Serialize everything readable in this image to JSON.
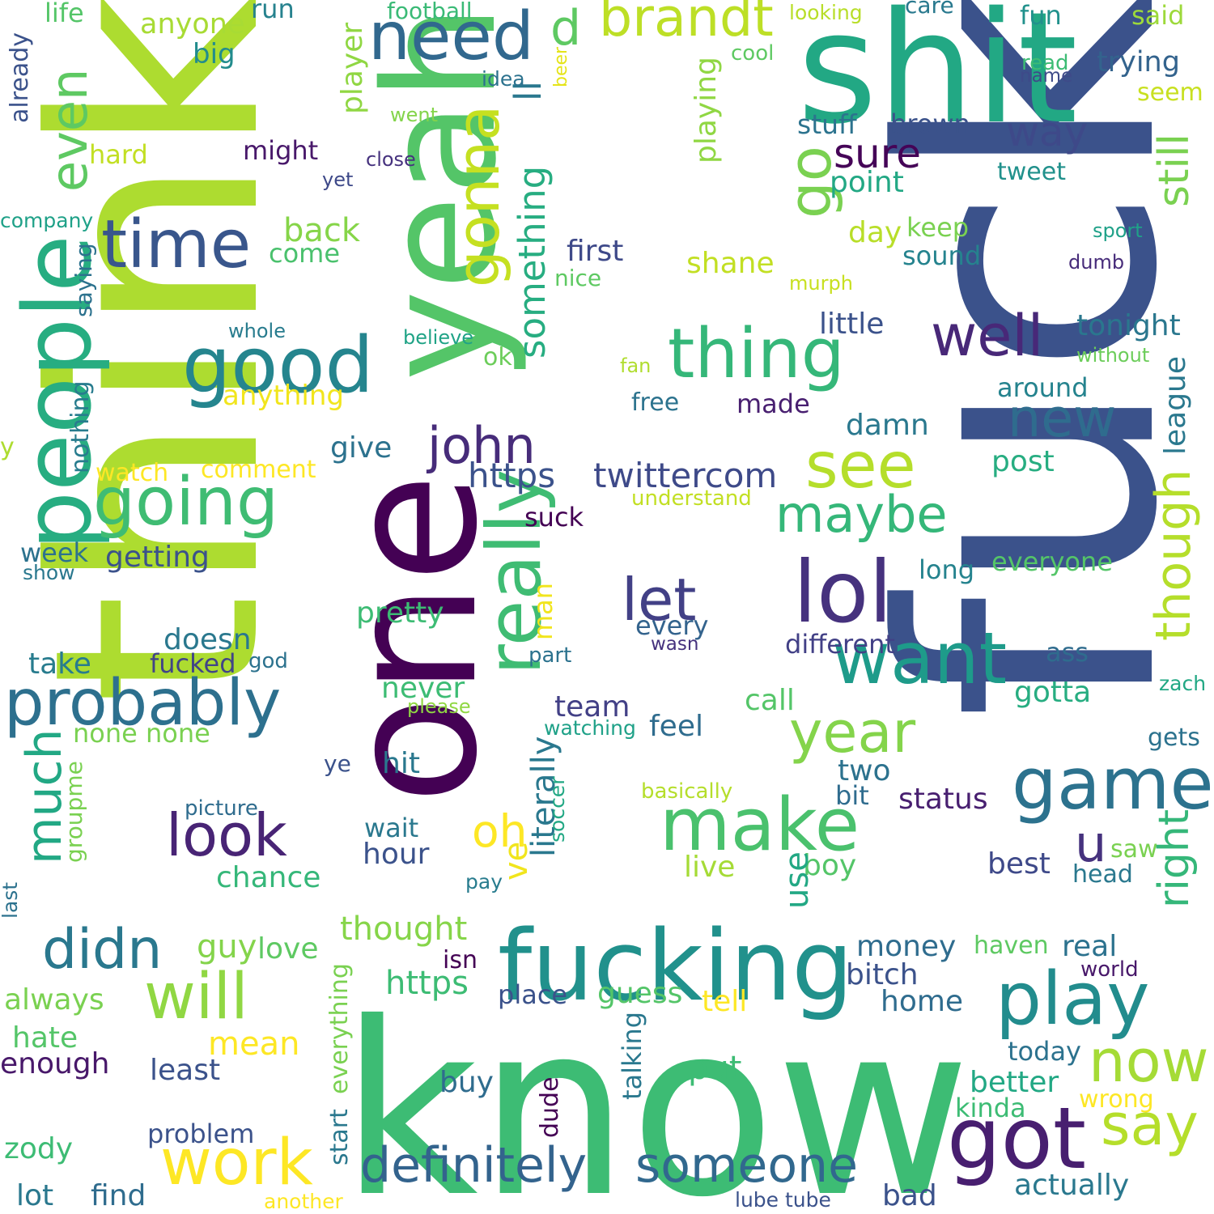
{
  "words": [
    {
      "text": "fuck",
      "color": "#3b528b",
      "rot": -90
    },
    {
      "text": "think",
      "color": "#addc30",
      "rot": -90
    },
    {
      "text": "one",
      "color": "#440154",
      "rot": -90
    },
    {
      "text": "know",
      "color": "#3dbc74",
      "rot": 0
    },
    {
      "text": "shit",
      "color": "#22a884",
      "rot": 0
    },
    {
      "text": "yeah",
      "color": "#54c568",
      "rot": -90
    },
    {
      "text": "fucking",
      "color": "#21918c",
      "rot": 0
    },
    {
      "text": "people",
      "color": "#27ad81",
      "rot": -90
    },
    {
      "text": "time",
      "color": "#39568c",
      "rot": 0
    },
    {
      "text": "good",
      "color": "#25858e",
      "rot": 0
    },
    {
      "text": "going",
      "color": "#3fbc73",
      "rot": 0
    },
    {
      "text": "probably",
      "color": "#2d708e",
      "rot": 0
    },
    {
      "text": "need",
      "color": "#31688e",
      "rot": 0
    },
    {
      "text": "even",
      "color": "#5ec962",
      "rot": -90
    },
    {
      "text": "brandt",
      "color": "#bddf26",
      "rot": 0
    },
    {
      "text": "gonna",
      "color": "#c5e021",
      "rot": -90
    },
    {
      "text": "go",
      "color": "#7ad151",
      "rot": -90
    },
    {
      "text": "really",
      "color": "#3fbc73",
      "rot": -90
    },
    {
      "text": "thing",
      "color": "#35b779",
      "rot": 0
    },
    {
      "text": "well",
      "color": "#482878",
      "rot": 0
    },
    {
      "text": "lol",
      "color": "#46327e",
      "rot": 0
    },
    {
      "text": "want",
      "color": "#1e9b8a",
      "rot": 0
    },
    {
      "text": "see",
      "color": "#b5de2b",
      "rot": 0
    },
    {
      "text": "maybe",
      "color": "#35b779",
      "rot": 0
    },
    {
      "text": "john",
      "color": "#472c7a",
      "rot": 0
    },
    {
      "text": "make",
      "color": "#4ac16d",
      "rot": 0
    },
    {
      "text": "year",
      "color": "#84d44b",
      "rot": 0
    },
    {
      "text": "game",
      "color": "#2c728e",
      "rot": 0
    },
    {
      "text": "play",
      "color": "#228c8d",
      "rot": 0
    },
    {
      "text": "got",
      "color": "#481f70",
      "rot": 0
    },
    {
      "text": "now",
      "color": "#a5db36",
      "rot": 0
    },
    {
      "text": "say",
      "color": "#b5de2b",
      "rot": 0
    },
    {
      "text": "will",
      "color": "#90d743",
      "rot": 0
    },
    {
      "text": "work",
      "color": "#fde725",
      "rot": 0
    },
    {
      "text": "didn",
      "color": "#2a788e",
      "rot": 0
    },
    {
      "text": "look",
      "color": "#482475",
      "rot": 0
    },
    {
      "text": "much",
      "color": "#22a884",
      "rot": -90
    },
    {
      "text": "definitely",
      "color": "#33638d",
      "rot": 0
    },
    {
      "text": "someone",
      "color": "#31688e",
      "rot": 0
    },
    {
      "text": "still",
      "color": "#7ad151",
      "rot": -90
    },
    {
      "text": "though",
      "color": "#b5de2b",
      "rot": -90
    },
    {
      "text": "right",
      "color": "#35b779",
      "rot": -90
    },
    {
      "text": "something",
      "color": "#27ad81",
      "rot": -90
    },
    {
      "text": "ll",
      "color": "#2a788e",
      "rot": -90
    },
    {
      "text": "sure",
      "color": "#450457",
      "rot": 0
    },
    {
      "text": "way",
      "color": "#3e4989",
      "rot": 0
    },
    {
      "text": "new",
      "color": "#2f6c8e",
      "rot": 0
    },
    {
      "text": "let",
      "color": "#424086",
      "rot": 0
    },
    {
      "text": "u",
      "color": "#46327e",
      "rot": 0
    },
    {
      "text": "oh",
      "color": "#fde725",
      "rot": 0
    },
    {
      "text": "d",
      "color": "#5ec962",
      "rot": 0
    },
    {
      "text": "https",
      "color": "#3b528b",
      "rot": 0
    },
    {
      "text": "twittercom",
      "color": "#3e4a89",
      "rot": 0
    },
    {
      "text": "anything",
      "color": "#f1e51d",
      "rot": 0
    },
    {
      "text": "little",
      "color": "#3b528b",
      "rot": 0
    },
    {
      "text": "tonight",
      "color": "#2a778e",
      "rot": 0
    },
    {
      "text": "stuff",
      "color": "#2c738e",
      "rot": 0
    },
    {
      "text": "brown",
      "color": "#3b528b",
      "rot": 0
    },
    {
      "text": "point",
      "color": "#22a884",
      "rot": 0
    },
    {
      "text": "day",
      "color": "#b8de29",
      "rot": 0
    },
    {
      "text": "keep",
      "color": "#7ad151",
      "rot": 0
    },
    {
      "text": "sound",
      "color": "#25838e",
      "rot": 0
    },
    {
      "text": "first",
      "color": "#3e4989",
      "rot": 0
    },
    {
      "text": "shane",
      "color": "#c2df23",
      "rot": 0
    },
    {
      "text": "nice",
      "color": "#5ec962",
      "rot": 0
    },
    {
      "text": "back",
      "color": "#86d549",
      "rot": 0
    },
    {
      "text": "come",
      "color": "#4ac16d",
      "rot": 0
    },
    {
      "text": "might",
      "color": "#48186a",
      "rot": 0
    },
    {
      "text": "hard",
      "color": "#c2df23",
      "rot": 0
    },
    {
      "text": "big",
      "color": "#228c8d",
      "rot": 0
    },
    {
      "text": "anyone",
      "color": "#a8db34",
      "rot": 0
    },
    {
      "text": "life",
      "color": "#54c568",
      "rot": 0
    },
    {
      "text": "run",
      "color": "#26828e",
      "rot": 0
    },
    {
      "text": "football",
      "color": "#3aba76",
      "rot": 0
    },
    {
      "text": "looking",
      "color": "#b8de29",
      "rot": 0
    },
    {
      "text": "care",
      "color": "#29798e",
      "rot": 0
    },
    {
      "text": "fun",
      "color": "#21918c",
      "rot": 0
    },
    {
      "text": "said",
      "color": "#9dd93b",
      "rot": 0
    },
    {
      "text": "trying",
      "color": "#33638d",
      "rot": 0
    },
    {
      "text": "read",
      "color": "#3dbc74",
      "rot": 0
    },
    {
      "text": "name",
      "color": "#3e4a89",
      "rot": 0
    },
    {
      "text": "seem",
      "color": "#c8e020",
      "rot": 0
    },
    {
      "text": "cool",
      "color": "#5ec962",
      "rot": 0
    },
    {
      "text": "idea",
      "color": "#2c728e",
      "rot": 0
    },
    {
      "text": "beer",
      "color": "#e5e419",
      "rot": -90
    },
    {
      "text": "player",
      "color": "#90d743",
      "rot": -90
    },
    {
      "text": "playing",
      "color": "#90d743",
      "rot": -90
    },
    {
      "text": "went",
      "color": "#84d44b",
      "rot": 0
    },
    {
      "text": "close",
      "color": "#46327e",
      "rot": 0
    },
    {
      "text": "yet",
      "color": "#3e4989",
      "rot": 0
    },
    {
      "text": "tweet",
      "color": "#21918c",
      "rot": 0
    },
    {
      "text": "sport",
      "color": "#1fa188",
      "rot": 0
    },
    {
      "text": "dumb",
      "color": "#472c7a",
      "rot": 0
    },
    {
      "text": "murph",
      "color": "#c8e020",
      "rot": 0
    },
    {
      "text": "company",
      "color": "#1fa188",
      "rot": 0
    },
    {
      "text": "already",
      "color": "#3b528b",
      "rot": -90
    },
    {
      "text": "saying",
      "color": "#2c728e",
      "rot": -90
    },
    {
      "text": "whole",
      "color": "#287c8e",
      "rot": 0
    },
    {
      "text": "believe",
      "color": "#20a386",
      "rot": 0
    },
    {
      "text": "ok",
      "color": "#6ccd5a",
      "rot": 0
    },
    {
      "text": "fan",
      "color": "#b0dd2f",
      "rot": 0
    },
    {
      "text": "without",
      "color": "#6ccd5a",
      "rot": 0
    },
    {
      "text": "league",
      "color": "#2a788e",
      "rot": -90
    },
    {
      "text": "around",
      "color": "#25838e",
      "rot": 0
    },
    {
      "text": "post",
      "color": "#27ad81",
      "rot": 0
    },
    {
      "text": "free",
      "color": "#2c738e",
      "rot": 0
    },
    {
      "text": "made",
      "color": "#481f70",
      "rot": 0
    },
    {
      "text": "damn",
      "color": "#2a788e",
      "rot": 0
    },
    {
      "text": "nothing",
      "color": "#287c8e",
      "rot": -90
    },
    {
      "text": "y",
      "color": "#addc30",
      "rot": 0
    },
    {
      "text": "watch",
      "color": "#fde725",
      "rot": 0
    },
    {
      "text": "comment",
      "color": "#fde725",
      "rot": 0
    },
    {
      "text": "give",
      "color": "#2c728e",
      "rot": 0
    },
    {
      "text": "understand",
      "color": "#c2df23",
      "rot": 0
    },
    {
      "text": "suck",
      "color": "#440154",
      "rot": 0
    },
    {
      "text": "long",
      "color": "#25838e",
      "rot": 0
    },
    {
      "text": "everyone",
      "color": "#54c568",
      "rot": 0
    },
    {
      "text": "week",
      "color": "#2c728e",
      "rot": 0
    },
    {
      "text": "show",
      "color": "#2a788e",
      "rot": 0
    },
    {
      "text": "getting",
      "color": "#3b528b",
      "rot": 0
    },
    {
      "text": "pretty",
      "color": "#3dbc74",
      "rot": 0
    },
    {
      "text": "man",
      "color": "#f1e51d",
      "rot": -90
    },
    {
      "text": "every",
      "color": "#33638d",
      "rot": 0
    },
    {
      "text": "wasn",
      "color": "#46327e",
      "rot": 0
    },
    {
      "text": "different",
      "color": "#424086",
      "rot": 0
    },
    {
      "text": "ass",
      "color": "#2f6c8e",
      "rot": 0
    },
    {
      "text": "doesn",
      "color": "#2a788e",
      "rot": 0
    },
    {
      "text": "take",
      "color": "#287c8e",
      "rot": 0
    },
    {
      "text": "fucked",
      "color": "#414487",
      "rot": 0
    },
    {
      "text": "god",
      "color": "#2c728e",
      "rot": 0
    },
    {
      "text": "part",
      "color": "#2c728e",
      "rot": 0
    },
    {
      "text": "zach",
      "color": "#22a884",
      "rot": 0
    },
    {
      "text": "never",
      "color": "#3dbc74",
      "rot": 0
    },
    {
      "text": "please",
      "color": "#90d743",
      "rot": 0
    },
    {
      "text": "team",
      "color": "#424086",
      "rot": 0
    },
    {
      "text": "call",
      "color": "#54c568",
      "rot": 0
    },
    {
      "text": "gotta",
      "color": "#27ad81",
      "rot": 0
    },
    {
      "text": "none none",
      "color": "#7ad151",
      "rot": 0
    },
    {
      "text": "watching",
      "color": "#1fa188",
      "rot": 0
    },
    {
      "text": "feel",
      "color": "#2f6c8e",
      "rot": 0
    },
    {
      "text": "literally",
      "color": "#2a788e",
      "rot": -90
    },
    {
      "text": "gets",
      "color": "#2c728e",
      "rot": 0
    },
    {
      "text": "ye",
      "color": "#3b528b",
      "rot": 0
    },
    {
      "text": "hit",
      "color": "#2a788e",
      "rot": 0
    },
    {
      "text": "two",
      "color": "#2c728e",
      "rot": 0
    },
    {
      "text": "bit",
      "color": "#2f6c8e",
      "rot": 0
    },
    {
      "text": "status",
      "color": "#481f70",
      "rot": 0
    },
    {
      "text": "groupme",
      "color": "#7ad151",
      "rot": -90
    },
    {
      "text": "basically",
      "color": "#b5de2b",
      "rot": 0
    },
    {
      "text": "picture",
      "color": "#2f6c8e",
      "rot": 0
    },
    {
      "text": "soccer",
      "color": "#22a884",
      "rot": -90
    },
    {
      "text": "wait",
      "color": "#2a788e",
      "rot": 0
    },
    {
      "text": "hour",
      "color": "#3b528b",
      "rot": 0
    },
    {
      "text": "ve",
      "color": "#f1e51d",
      "rot": -90
    },
    {
      "text": "saw",
      "color": "#7ad151",
      "rot": 0
    },
    {
      "text": "head",
      "color": "#2a788e",
      "rot": 0
    },
    {
      "text": "live",
      "color": "#a5db36",
      "rot": 0
    },
    {
      "text": "boy",
      "color": "#54c568",
      "rot": 0
    },
    {
      "text": "best",
      "color": "#3e4989",
      "rot": 0
    },
    {
      "text": "last",
      "color": "#2c728e",
      "rot": -90
    },
    {
      "text": "chance",
      "color": "#35b779",
      "rot": 0
    },
    {
      "text": "pay",
      "color": "#287c8e",
      "rot": 0
    },
    {
      "text": "use",
      "color": "#22a884",
      "rot": -90
    },
    {
      "text": "thought",
      "color": "#86d549",
      "rot": 0
    },
    {
      "text": "isn",
      "color": "#440154",
      "rot": 0
    },
    {
      "text": "money",
      "color": "#2f6c8e",
      "rot": 0
    },
    {
      "text": "real",
      "color": "#2c728e",
      "rot": 0
    },
    {
      "text": "guy",
      "color": "#84d44b",
      "rot": 0
    },
    {
      "text": "love",
      "color": "#5ec962",
      "rot": 0
    },
    {
      "text": "haven",
      "color": "#5ec962",
      "rot": 0
    },
    {
      "text": "world",
      "color": "#48186a",
      "rot": 0
    },
    {
      "text": "always",
      "color": "#7ad151",
      "rot": 0
    },
    {
      "text": "https",
      "color": "#3dbc74",
      "rot": 0
    },
    {
      "text": "bitch",
      "color": "#3b528b",
      "rot": 0
    },
    {
      "text": "place",
      "color": "#3b528b",
      "rot": 0
    },
    {
      "text": "guess",
      "color": "#54c568",
      "rot": 0
    },
    {
      "text": "tell",
      "color": "#fde725",
      "rot": 0
    },
    {
      "text": "home",
      "color": "#2f6c8e",
      "rot": 0
    },
    {
      "text": "everything",
      "color": "#7ad151",
      "rot": -90
    },
    {
      "text": "hate",
      "color": "#54c568",
      "rot": 0
    },
    {
      "text": "mean",
      "color": "#fde725",
      "rot": 0
    },
    {
      "text": "enough",
      "color": "#48186a",
      "rot": 0
    },
    {
      "text": "least",
      "color": "#3b528b",
      "rot": 0
    },
    {
      "text": "today",
      "color": "#2c728e",
      "rot": 0
    },
    {
      "text": "put",
      "color": "#3dbc74",
      "rot": 0
    },
    {
      "text": "talking",
      "color": "#2a788e",
      "rot": -90
    },
    {
      "text": "better",
      "color": "#22a884",
      "rot": 0
    },
    {
      "text": "kinda",
      "color": "#3dbc74",
      "rot": 0
    },
    {
      "text": "wrong",
      "color": "#fde725",
      "rot": 0
    },
    {
      "text": "buy",
      "color": "#2f6c8e",
      "rot": 0
    },
    {
      "text": "start",
      "color": "#2a788e",
      "rot": -90
    },
    {
      "text": "dude",
      "color": "#440154",
      "rot": -90
    },
    {
      "text": "problem",
      "color": "#3b528b",
      "rot": 0
    },
    {
      "text": "zody",
      "color": "#3dbc74",
      "rot": 0
    },
    {
      "text": "lot",
      "color": "#2a788e",
      "rot": 0
    },
    {
      "text": "find",
      "color": "#2f6c8e",
      "rot": 0
    },
    {
      "text": "another",
      "color": "#fde725",
      "rot": 0
    },
    {
      "text": "lube tube",
      "color": "#3b528b",
      "rot": 0
    },
    {
      "text": "bad",
      "color": "#3b528b",
      "rot": 0
    },
    {
      "text": "actually",
      "color": "#2a788e",
      "rot": 0
    }
  ]
}
